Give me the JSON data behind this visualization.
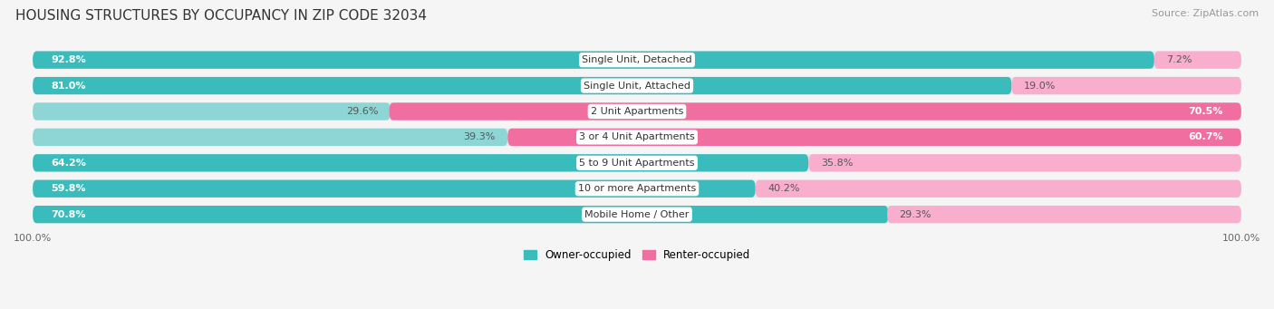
{
  "title": "HOUSING STRUCTURES BY OCCUPANCY IN ZIP CODE 32034",
  "source": "Source: ZipAtlas.com",
  "categories": [
    "Single Unit, Detached",
    "Single Unit, Attached",
    "2 Unit Apartments",
    "3 or 4 Unit Apartments",
    "5 to 9 Unit Apartments",
    "10 or more Apartments",
    "Mobile Home / Other"
  ],
  "owner_pct": [
    92.8,
    81.0,
    29.6,
    39.3,
    64.2,
    59.8,
    70.8
  ],
  "renter_pct": [
    7.2,
    19.0,
    70.5,
    60.7,
    35.8,
    40.2,
    29.3
  ],
  "owner_color_strong": "#3BBCBC",
  "owner_color_light": "#8ED6D6",
  "renter_color_strong": "#F06EA0",
  "renter_color_light": "#F9AECE",
  "row_bg_color": "#E8E8E8",
  "bg_color": "#F5F5F5",
  "title_fontsize": 11,
  "source_fontsize": 8,
  "bar_fontsize": 8,
  "cat_fontsize": 8
}
